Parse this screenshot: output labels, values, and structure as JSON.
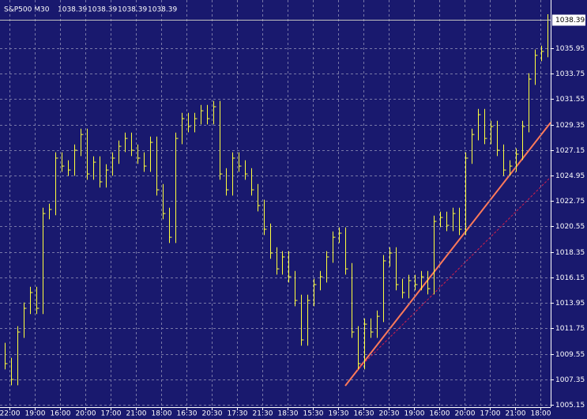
{
  "chart_data": {
    "type": "hlc",
    "symbol": "S&P500 M30",
    "header_values": [
      1038.39,
      1038.39,
      1038.39,
      1038.39
    ],
    "last_price": 1038.39,
    "color": "#ffff3c",
    "grid": true,
    "ylim": [
      1004.94,
      1039.78
    ],
    "yticks": [
      1035.95,
      1033.75,
      1031.55,
      1029.35,
      1027.15,
      1024.95,
      1022.75,
      1020.55,
      1018.35,
      1016.15,
      1013.95,
      1011.75,
      1009.55,
      1007.35,
      1005.15
    ],
    "x_labels": [
      "22:00",
      "19:00",
      "16:00",
      "20:00",
      "17:00",
      "21:00",
      "18:00",
      "16:30",
      "20:30",
      "17:30",
      "21:30",
      "18:30",
      "15:30",
      "19:30",
      "16:30",
      "20:30",
      "19:00",
      "16:00",
      "20:00",
      "17:00",
      "21:00",
      "18:00"
    ],
    "high": [
      1010.5,
      1009.2,
      1011.93,
      1013.98,
      1015.34,
      1015.34,
      1022.17,
      1022.52,
      1026.96,
      1026.96,
      1026.27,
      1027.64,
      1029.0,
      1029.0,
      1026.61,
      1026.61,
      1025.93,
      1026.96,
      1027.98,
      1028.66,
      1028.66,
      1027.64,
      1026.96,
      1028.32,
      1028.32,
      1024.22,
      1022.17,
      1028.66,
      1030.37,
      1030.37,
      1030.37,
      1031.05,
      1031.05,
      1031.4,
      1031.4,
      1025.59,
      1026.96,
      1026.96,
      1026.27,
      1025.59,
      1024.22,
      1022.86,
      1020.81,
      1018.76,
      1018.42,
      1018.42,
      1016.71,
      1014.66,
      1014.66,
      1016.03,
      1016.71,
      1018.42,
      1020.12,
      1020.47,
      1020.47,
      1017.39,
      1011.93,
      1012.61,
      1012.61,
      1013.29,
      1018.08,
      1018.76,
      1018.76,
      1016.03,
      1016.37,
      1016.37,
      1016.71,
      1016.71,
      1021.49,
      1021.83,
      1021.83,
      1022.17,
      1022.17,
      1026.96,
      1029.0,
      1030.71,
      1030.71,
      1029.69,
      1029.69,
      1027.64,
      1026.27,
      1027.3,
      1029.69,
      1033.79,
      1035.84,
      1036.18,
      1038.89
    ],
    "low": [
      1008.2,
      1006.83,
      1006.83,
      1010.93,
      1012.98,
      1012.98,
      1012.98,
      1021.17,
      1021.52,
      1025.27,
      1024.93,
      1024.93,
      1026.64,
      1024.59,
      1024.59,
      1023.91,
      1023.91,
      1024.93,
      1025.96,
      1026.98,
      1026.64,
      1025.96,
      1025.27,
      1025.27,
      1023.22,
      1021.17,
      1019.12,
      1019.12,
      1027.66,
      1028.69,
      1028.69,
      1029.37,
      1029.37,
      1029.37,
      1024.59,
      1023.22,
      1023.22,
      1025.27,
      1024.59,
      1023.22,
      1021.86,
      1019.81,
      1017.76,
      1016.39,
      1016.39,
      1015.71,
      1013.66,
      1010.25,
      1010.25,
      1013.66,
      1015.03,
      1015.71,
      1017.42,
      1019.12,
      1016.39,
      1010.93,
      1008.2,
      1008.2,
      1010.93,
      1010.93,
      1012.29,
      1017.08,
      1015.03,
      1014.34,
      1014.34,
      1015.03,
      1015.03,
      1014.68,
      1014.68,
      1020.49,
      1020.15,
      1020.15,
      1019.81,
      1019.81,
      1025.96,
      1028.0,
      1027.66,
      1027.66,
      1026.64,
      1024.93,
      1024.93,
      1025.27,
      1026.3,
      1028.69,
      1032.79,
      1034.84,
      1035.18
    ],
    "close": [
      1008.7,
      1007.33,
      1011.43,
      1013.48,
      1014.84,
      1013.48,
      1021.67,
      1022.02,
      1026.46,
      1025.77,
      1025.43,
      1027.14,
      1028.5,
      1025.09,
      1026.11,
      1024.41,
      1025.43,
      1026.46,
      1027.48,
      1028.16,
      1027.14,
      1026.46,
      1025.77,
      1027.82,
      1023.72,
      1021.67,
      1019.62,
      1028.16,
      1029.87,
      1029.19,
      1029.87,
      1030.55,
      1029.87,
      1030.9,
      1025.09,
      1023.72,
      1026.46,
      1025.77,
      1025.09,
      1023.72,
      1022.36,
      1020.31,
      1018.26,
      1016.89,
      1017.92,
      1016.21,
      1014.16,
      1010.75,
      1014.16,
      1015.53,
      1016.21,
      1017.92,
      1019.62,
      1019.97,
      1016.89,
      1011.43,
      1008.7,
      1012.11,
      1011.43,
      1012.79,
      1017.58,
      1018.26,
      1015.53,
      1014.84,
      1015.87,
      1015.53,
      1016.21,
      1015.18,
      1020.99,
      1021.33,
      1020.65,
      1021.67,
      1020.31,
      1026.46,
      1028.5,
      1030.21,
      1028.16,
      1029.19,
      1027.14,
      1025.43,
      1025.77,
      1026.8,
      1029.19,
      1033.29,
      1035.34,
      1035.68,
      1038.39
    ]
  }
}
